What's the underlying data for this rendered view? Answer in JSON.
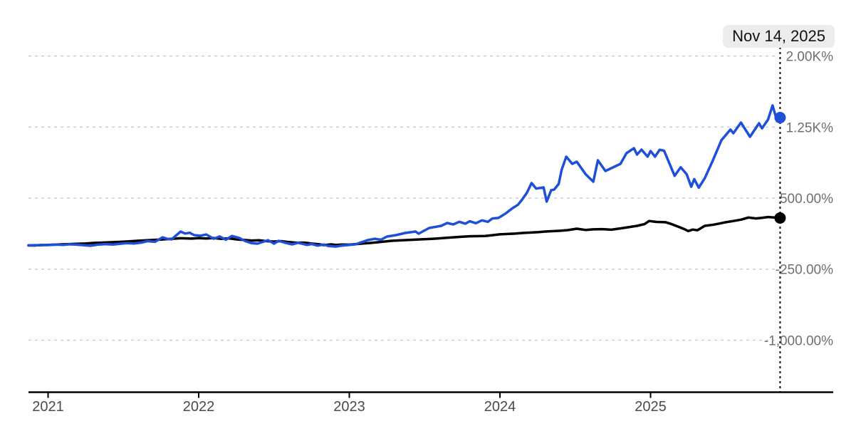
{
  "tooltip": {
    "date_label": "Nov 14, 2025"
  },
  "colors": {
    "background": "#ffffff",
    "blue_series": "#1d4fd8",
    "black_series": "#000000",
    "gridline": "#cbcbcb",
    "axis_line": "#000000",
    "x_tick_label": "#4a4a4a",
    "y_tick_label": "#6f6f6f",
    "cursor_line": "#000000",
    "tooltip_bg": "#ececec",
    "tooltip_text": "#111111"
  },
  "chart_data": {
    "type": "line",
    "title": "",
    "xlabel": "",
    "ylabel": "",
    "grid": true,
    "legend": "none",
    "x_axis": {
      "range_years": [
        2020.87,
        2025.9
      ],
      "ticks": [
        {
          "value": 2021,
          "label": "2021"
        },
        {
          "value": 2022,
          "label": "2022"
        },
        {
          "value": 2023,
          "label": "2023"
        },
        {
          "value": 2024,
          "label": "2024"
        },
        {
          "value": 2025,
          "label": "2025"
        }
      ]
    },
    "y_axis": {
      "unit": "%",
      "ticks": [
        {
          "value": 2000,
          "label": "2.00K%"
        },
        {
          "value": 1250,
          "label": "1.25K%"
        },
        {
          "value": 500,
          "label": "500.00%"
        },
        {
          "value": -250,
          "label": "-250.00%"
        },
        {
          "value": -1000,
          "label": "-1,000.00%"
        }
      ]
    },
    "cursor": {
      "date_label": "Nov 14, 2025",
      "x_year": 2025.86
    },
    "series": [
      {
        "name": "black-series",
        "color": "#000000",
        "end_value_pct": 290,
        "points": [
          [
            2020.87,
            0
          ],
          [
            2020.95,
            3
          ],
          [
            2021.0,
            5
          ],
          [
            2021.1,
            12
          ],
          [
            2021.2,
            18
          ],
          [
            2021.25,
            20
          ],
          [
            2021.3,
            26
          ],
          [
            2021.4,
            33
          ],
          [
            2021.5,
            40
          ],
          [
            2021.6,
            50
          ],
          [
            2021.7,
            58
          ],
          [
            2021.75,
            62
          ],
          [
            2021.8,
            68
          ],
          [
            2021.88,
            76
          ],
          [
            2021.95,
            72
          ],
          [
            2022.0,
            77
          ],
          [
            2022.05,
            74
          ],
          [
            2022.1,
            78
          ],
          [
            2022.15,
            70
          ],
          [
            2022.2,
            75
          ],
          [
            2022.25,
            64
          ],
          [
            2022.3,
            58
          ],
          [
            2022.35,
            52
          ],
          [
            2022.4,
            55
          ],
          [
            2022.45,
            45
          ],
          [
            2022.5,
            41
          ],
          [
            2022.55,
            45
          ],
          [
            2022.6,
            35
          ],
          [
            2022.65,
            28
          ],
          [
            2022.7,
            30
          ],
          [
            2022.75,
            20
          ],
          [
            2022.8,
            12
          ],
          [
            2022.83,
            4
          ],
          [
            2022.88,
            11
          ],
          [
            2022.91,
            6
          ],
          [
            2022.95,
            10
          ],
          [
            2023.0,
            8
          ],
          [
            2023.05,
            15
          ],
          [
            2023.1,
            22
          ],
          [
            2023.14,
            26
          ],
          [
            2023.2,
            35
          ],
          [
            2023.28,
            49
          ],
          [
            2023.35,
            55
          ],
          [
            2023.4,
            58
          ],
          [
            2023.47,
            64
          ],
          [
            2023.55,
            70
          ],
          [
            2023.6,
            75
          ],
          [
            2023.69,
            86
          ],
          [
            2023.75,
            92
          ],
          [
            2023.8,
            97
          ],
          [
            2023.9,
            100
          ],
          [
            2023.95,
            108
          ],
          [
            2024.0,
            117
          ],
          [
            2024.1,
            125
          ],
          [
            2024.15,
            132
          ],
          [
            2024.25,
            140
          ],
          [
            2024.3,
            147
          ],
          [
            2024.4,
            155
          ],
          [
            2024.45,
            162
          ],
          [
            2024.51,
            177
          ],
          [
            2024.57,
            163
          ],
          [
            2024.62,
            170
          ],
          [
            2024.68,
            172
          ],
          [
            2024.74,
            166
          ],
          [
            2024.82,
            184
          ],
          [
            2024.91,
            207
          ],
          [
            2024.96,
            225
          ],
          [
            2024.99,
            258
          ],
          [
            2025.04,
            248
          ],
          [
            2025.1,
            245
          ],
          [
            2025.14,
            225
          ],
          [
            2025.18,
            200
          ],
          [
            2025.22,
            175
          ],
          [
            2025.25,
            152
          ],
          [
            2025.28,
            168
          ],
          [
            2025.31,
            160
          ],
          [
            2025.36,
            207
          ],
          [
            2025.42,
            220
          ],
          [
            2025.5,
            245
          ],
          [
            2025.55,
            258
          ],
          [
            2025.6,
            272
          ],
          [
            2025.65,
            295
          ],
          [
            2025.7,
            285
          ],
          [
            2025.74,
            292
          ],
          [
            2025.78,
            300
          ],
          [
            2025.82,
            295
          ],
          [
            2025.86,
            290
          ]
        ]
      },
      {
        "name": "blue-series",
        "color": "#1d4fd8",
        "end_value_pct": 1350,
        "points": [
          [
            2020.87,
            2
          ],
          [
            2020.91,
            -2
          ],
          [
            2020.95,
            6
          ],
          [
            2021.0,
            4
          ],
          [
            2021.05,
            10
          ],
          [
            2021.1,
            5
          ],
          [
            2021.14,
            12
          ],
          [
            2021.19,
            8
          ],
          [
            2021.24,
            2
          ],
          [
            2021.28,
            -4
          ],
          [
            2021.33,
            8
          ],
          [
            2021.38,
            14
          ],
          [
            2021.43,
            10
          ],
          [
            2021.48,
            18
          ],
          [
            2021.52,
            24
          ],
          [
            2021.57,
            20
          ],
          [
            2021.62,
            30
          ],
          [
            2021.66,
            45
          ],
          [
            2021.71,
            38
          ],
          [
            2021.76,
            86
          ],
          [
            2021.79,
            70
          ],
          [
            2021.82,
            64
          ],
          [
            2021.88,
            147
          ],
          [
            2021.91,
            126
          ],
          [
            2021.94,
            134
          ],
          [
            2021.97,
            109
          ],
          [
            2022.01,
            102
          ],
          [
            2022.05,
            116
          ],
          [
            2022.1,
            71
          ],
          [
            2022.14,
            95
          ],
          [
            2022.18,
            60
          ],
          [
            2022.22,
            100
          ],
          [
            2022.27,
            79
          ],
          [
            2022.31,
            45
          ],
          [
            2022.35,
            25
          ],
          [
            2022.39,
            19
          ],
          [
            2022.46,
            56
          ],
          [
            2022.5,
            19
          ],
          [
            2022.53,
            49
          ],
          [
            2022.57,
            30
          ],
          [
            2022.62,
            11
          ],
          [
            2022.66,
            28
          ],
          [
            2022.72,
            5
          ],
          [
            2022.75,
            15
          ],
          [
            2022.79,
            -2
          ],
          [
            2022.83,
            10
          ],
          [
            2022.86,
            -5
          ],
          [
            2022.91,
            -12
          ],
          [
            2022.94,
            -4
          ],
          [
            2023.0,
            5
          ],
          [
            2023.04,
            11
          ],
          [
            2023.12,
            56
          ],
          [
            2023.17,
            71
          ],
          [
            2023.21,
            60
          ],
          [
            2023.25,
            94
          ],
          [
            2023.31,
            109
          ],
          [
            2023.37,
            132
          ],
          [
            2023.44,
            147
          ],
          [
            2023.46,
            124
          ],
          [
            2023.53,
            184
          ],
          [
            2023.61,
            207
          ],
          [
            2023.65,
            237
          ],
          [
            2023.69,
            222
          ],
          [
            2023.73,
            250
          ],
          [
            2023.77,
            230
          ],
          [
            2023.8,
            255
          ],
          [
            2023.84,
            235
          ],
          [
            2023.88,
            265
          ],
          [
            2023.92,
            250
          ],
          [
            2023.95,
            285
          ],
          [
            2023.99,
            290
          ],
          [
            2024.04,
            340
          ],
          [
            2024.08,
            390
          ],
          [
            2024.12,
            430
          ],
          [
            2024.15,
            490
          ],
          [
            2024.18,
            560
          ],
          [
            2024.21,
            659
          ],
          [
            2024.24,
            600
          ],
          [
            2024.29,
            613
          ],
          [
            2024.31,
            463
          ],
          [
            2024.34,
            583
          ],
          [
            2024.36,
            590
          ],
          [
            2024.39,
            650
          ],
          [
            2024.41,
            800
          ],
          [
            2024.44,
            937
          ],
          [
            2024.48,
            861
          ],
          [
            2024.51,
            884
          ],
          [
            2024.57,
            749
          ],
          [
            2024.62,
            673
          ],
          [
            2024.65,
            899
          ],
          [
            2024.7,
            786
          ],
          [
            2024.8,
            861
          ],
          [
            2024.84,
            974
          ],
          [
            2024.89,
            1027
          ],
          [
            2024.91,
            959
          ],
          [
            2024.94,
            1012
          ],
          [
            2024.98,
            937
          ],
          [
            2025.0,
            997
          ],
          [
            2025.03,
            937
          ],
          [
            2025.06,
            1010
          ],
          [
            2025.09,
            1000
          ],
          [
            2025.16,
            735
          ],
          [
            2025.2,
            825
          ],
          [
            2025.24,
            750
          ],
          [
            2025.27,
            620
          ],
          [
            2025.29,
            700
          ],
          [
            2025.32,
            610
          ],
          [
            2025.36,
            710
          ],
          [
            2025.41,
            885
          ],
          [
            2025.47,
            1110
          ],
          [
            2025.53,
            1223
          ],
          [
            2025.55,
            1185
          ],
          [
            2025.6,
            1298
          ],
          [
            2025.66,
            1147
          ],
          [
            2025.72,
            1290
          ],
          [
            2025.74,
            1237
          ],
          [
            2025.78,
            1330
          ],
          [
            2025.81,
            1478
          ],
          [
            2025.84,
            1313
          ],
          [
            2025.86,
            1350
          ]
        ]
      }
    ]
  }
}
